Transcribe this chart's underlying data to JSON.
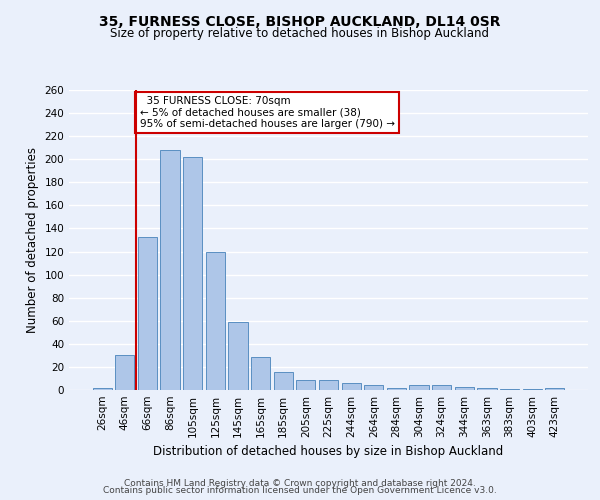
{
  "title": "35, FURNESS CLOSE, BISHOP AUCKLAND, DL14 0SR",
  "subtitle": "Size of property relative to detached houses in Bishop Auckland",
  "xlabel": "Distribution of detached houses by size in Bishop Auckland",
  "ylabel": "Number of detached properties",
  "categories": [
    "26sqm",
    "46sqm",
    "66sqm",
    "86sqm",
    "105sqm",
    "125sqm",
    "145sqm",
    "165sqm",
    "185sqm",
    "205sqm",
    "225sqm",
    "244sqm",
    "264sqm",
    "284sqm",
    "304sqm",
    "324sqm",
    "344sqm",
    "363sqm",
    "383sqm",
    "403sqm",
    "423sqm"
  ],
  "values": [
    2,
    30,
    133,
    208,
    202,
    120,
    59,
    29,
    16,
    9,
    9,
    6,
    4,
    2,
    4,
    4,
    3,
    2,
    1,
    1,
    2
  ],
  "bar_color": "#aec6e8",
  "bar_edge_color": "#5a8fc2",
  "red_line_x": 1.5,
  "annotation_text": "  35 FURNESS CLOSE: 70sqm\n← 5% of detached houses are smaller (38)\n95% of semi-detached houses are larger (790) →",
  "annotation_box_color": "#ffffff",
  "annotation_box_edge": "#cc0000",
  "red_line_color": "#cc0000",
  "ylim": [
    0,
    260
  ],
  "yticks": [
    0,
    20,
    40,
    60,
    80,
    100,
    120,
    140,
    160,
    180,
    200,
    220,
    240,
    260
  ],
  "footer_line1": "Contains HM Land Registry data © Crown copyright and database right 2024.",
  "footer_line2": "Contains public sector information licensed under the Open Government Licence v3.0.",
  "bg_color": "#eaf0fb",
  "grid_color": "#ffffff",
  "title_fontsize": 10,
  "subtitle_fontsize": 8.5,
  "xlabel_fontsize": 8.5,
  "ylabel_fontsize": 8.5,
  "tick_fontsize": 7.5,
  "footer_fontsize": 6.5
}
